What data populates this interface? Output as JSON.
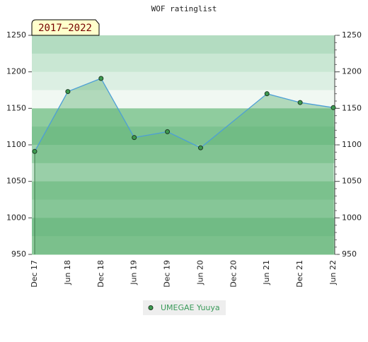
{
  "chart_data": {
    "type": "line",
    "title": "WOF ratinglist",
    "period_label": "2017–2022",
    "categories": [
      "Dec 17",
      "Jun 18",
      "Dec 18",
      "Jun 19",
      "Dec 19",
      "Jun 20",
      "Dec 20",
      "Jun 21",
      "Dec 21",
      "Jun 22"
    ],
    "x": [
      "Dec 17",
      "Jun 18",
      "Dec 18",
      "Jun 19",
      "Dec 19",
      "Jun 20",
      "Jun 21",
      "Dec 21",
      "Jun 22"
    ],
    "series": [
      {
        "name": "UMEGAE Yuuya",
        "color": "#4d9fd6",
        "marker_color": "#3d9a50",
        "values": [
          1091,
          1173,
          1191,
          1110,
          1118,
          1096,
          1170,
          1158,
          1151
        ]
      }
    ],
    "ylim": [
      950,
      1250
    ],
    "yticks": [
      950,
      1000,
      1050,
      1100,
      1150,
      1200,
      1250
    ],
    "y2lim": [
      950,
      1250
    ],
    "y2ticks": [
      950,
      1000,
      1050,
      1100,
      1150,
      1200,
      1250
    ],
    "legend": "bottom"
  }
}
